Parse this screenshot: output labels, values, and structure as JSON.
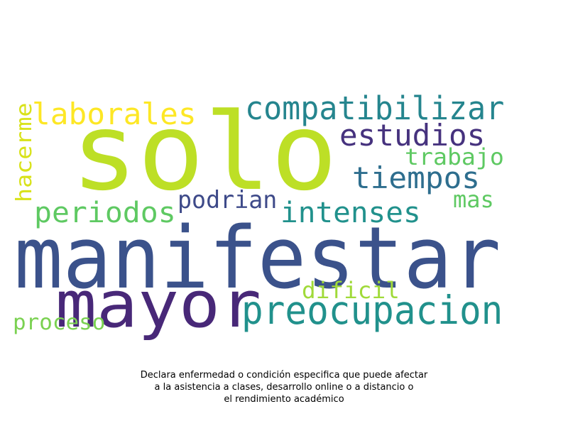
{
  "chart_data": {
    "type": "wordcloud",
    "words": [
      {
        "text": "solo",
        "color": "#bddf26"
      },
      {
        "text": "manifestar",
        "color": "#3b528b"
      },
      {
        "text": "mayor",
        "color": "#482878"
      },
      {
        "text": "compatibilizar",
        "color": "#25858e"
      },
      {
        "text": "laborales",
        "color": "#fde725"
      },
      {
        "text": "estudios",
        "color": "#46327e"
      },
      {
        "text": "tiempos",
        "color": "#2e6e8e"
      },
      {
        "text": "trabajo",
        "color": "#5ec962"
      },
      {
        "text": "hacerme",
        "color": "#d8e219"
      },
      {
        "text": "periodos",
        "color": "#5ec962"
      },
      {
        "text": "podrian",
        "color": "#3e4a89"
      },
      {
        "text": "intenses",
        "color": "#21918c"
      },
      {
        "text": "mas",
        "color": "#5ec962"
      },
      {
        "text": "preocupacion",
        "color": "#21918c"
      },
      {
        "text": "dificil",
        "color": "#a0da39"
      },
      {
        "text": "proceso",
        "color": "#7ad151"
      }
    ]
  },
  "caption": {
    "line1": "Declara enfermedad o condición especifica que puede afectar",
    "line2": "a la asistencia a clases, desarrollo online o a distancio o",
    "line3": "el rendimiento académico"
  }
}
